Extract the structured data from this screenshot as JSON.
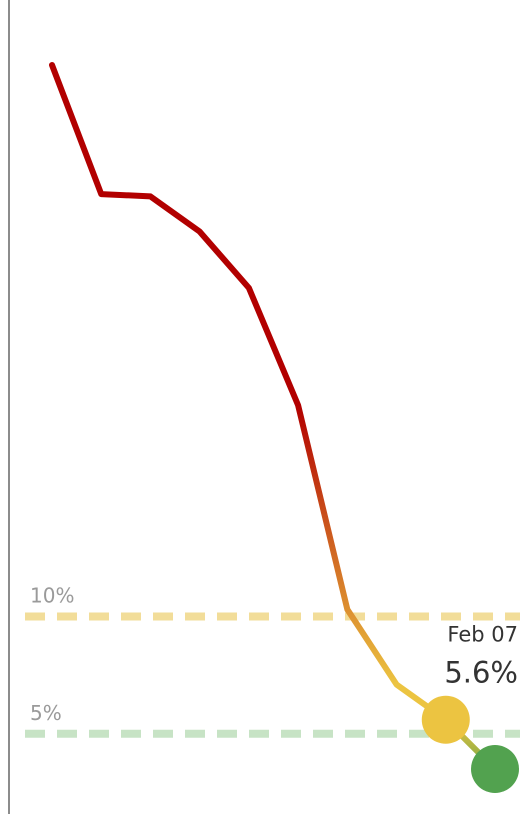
{
  "chart_data": {
    "type": "line",
    "x_unit": "days",
    "points": [
      {
        "x": -16,
        "y": 33.5
      },
      {
        "x": -15,
        "y": 28.0
      },
      {
        "x": -14,
        "y": 27.9
      },
      {
        "x": -13,
        "y": 26.4
      },
      {
        "x": -12,
        "y": 24.0
      },
      {
        "x": -11,
        "y": 19.0
      },
      {
        "x": -10,
        "y": 10.3
      },
      {
        "x": -9,
        "y": 7.1
      },
      {
        "x": -8,
        "y": 5.6
      },
      {
        "x": -7,
        "y": 3.5
      }
    ],
    "reference_lines": [
      {
        "value": 10,
        "label": "10%",
        "color": "#f2dd99"
      },
      {
        "value": 5,
        "label": "5%",
        "color": "#c7e3c5"
      }
    ],
    "highlight": {
      "date_label": "Feb 07",
      "value_label": "5.6%",
      "point_index": 8,
      "color": "#ecc441"
    },
    "last_point_color": "#52a24f",
    "line_colors": {
      "high": "#b20000",
      "mid": "#ecc441",
      "low": "#79a845"
    },
    "ylim": [
      0,
      35
    ],
    "grid": false,
    "legend": "none"
  }
}
